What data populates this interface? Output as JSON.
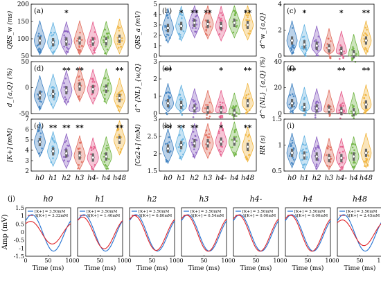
{
  "colors": [
    "#3b7fc0",
    "#5fb0e0",
    "#8a5fc1",
    "#e06a5a",
    "#e55a8a",
    "#6db33f",
    "#f0b43c"
  ],
  "groups": [
    "h0",
    "h1",
    "h2",
    "h3",
    "h4-",
    "h4",
    "h48"
  ],
  "chart_data": [
    {
      "type": "violin",
      "panel": "(a)",
      "ylabel": "QRS_w (ms)",
      "ylim": [
        50,
        200
      ],
      "yticks": [
        50,
        100,
        150,
        200
      ],
      "medians": [
        95,
        90,
        92,
        95,
        92,
        93,
        100
      ],
      "stars": [
        "",
        "",
        "*",
        "",
        "",
        "",
        ""
      ]
    },
    {
      "type": "violin",
      "panel": "(b)",
      "ylabel": "QRS_a (mV)",
      "ylim": [
        0,
        5
      ],
      "yticks": [
        0,
        1,
        2,
        3,
        4,
        5
      ],
      "medians": [
        2.7,
        2.9,
        3.2,
        3.1,
        2.9,
        3.2,
        3.0
      ],
      "stars": [
        "",
        "*",
        "**",
        "**",
        "",
        "",
        "**"
      ]
    },
    {
      "type": "violin",
      "panel": "(c)",
      "ylabel": "d^w_{a,Q}",
      "ylim": [
        0,
        4
      ],
      "yticks": [
        0,
        2,
        4
      ],
      "medians": [
        1.2,
        0.9,
        0.8,
        0.6,
        0.4,
        0.15,
        1.2
      ],
      "stars": [
        "",
        "*",
        "",
        "",
        "*",
        "",
        "**"
      ]
    },
    {
      "type": "violin",
      "panel": "(d)",
      "ylabel": "d_{a,Q} (%)",
      "ylim": [
        -50,
        50
      ],
      "yticks": [
        -50,
        0,
        50
      ],
      "medians": [
        -15,
        -12,
        -5,
        2,
        -3,
        -2,
        -20
      ],
      "stars": [
        "",
        "",
        "**",
        "**",
        "",
        "",
        "**"
      ]
    },
    {
      "type": "violin",
      "panel": "(e)",
      "ylabel": "d^{NL}_{w,Q}",
      "ylim": [
        0,
        3
      ],
      "yticks": [
        0,
        1,
        2,
        3
      ],
      "medians": [
        0.6,
        0.5,
        0.3,
        0.2,
        0.2,
        0.05,
        0.6
      ],
      "stars": [
        "**",
        "",
        "",
        "",
        "*",
        "",
        "**"
      ]
    },
    {
      "type": "violin",
      "panel": "(f)",
      "ylabel": "d^{NL}_{a,Q} (%)",
      "ylim": [
        0,
        40
      ],
      "yticks": [
        0,
        20,
        40
      ],
      "medians": [
        8,
        5,
        4,
        3,
        2,
        1,
        7
      ],
      "stars": [
        "**",
        "",
        "",
        "",
        "**",
        "",
        "**"
      ]
    },
    {
      "type": "violin",
      "panel": "(g)",
      "ylabel": "[K+] (mM)",
      "ylim": [
        2,
        7
      ],
      "yticks": [
        2,
        3,
        4,
        5,
        6,
        7
      ],
      "medians": [
        4.8,
        3.9,
        3.7,
        3.5,
        3.3,
        3.4,
        5.0
      ],
      "stars": [
        "",
        "**",
        "**",
        "**",
        "",
        "",
        "**"
      ]
    },
    {
      "type": "violin",
      "panel": "(h)",
      "ylabel": "[Ca2+] (mM)",
      "ylim": [
        1.5,
        3
      ],
      "yticks": [
        1.5,
        2,
        2.5,
        3
      ],
      "medians": [
        2.15,
        2.25,
        2.3,
        2.3,
        2.35,
        2.35,
        2.2
      ],
      "stars": [
        "**",
        "**",
        "**",
        "",
        "*",
        "",
        "**"
      ]
    },
    {
      "type": "violin",
      "panel": "(i)",
      "ylabel": "RR (s)",
      "ylim": [
        0.5,
        1.5
      ],
      "yticks": [
        0.5,
        1,
        1.5
      ],
      "medians": [
        0.85,
        0.8,
        0.78,
        0.75,
        0.75,
        0.78,
        0.85
      ],
      "stars": [
        "",
        "",
        "",
        "",
        "",
        "",
        ""
      ]
    }
  ],
  "xgroup_labels": [
    "h0",
    "h1",
    "h2",
    "h3",
    "h4-",
    "h4",
    "h48"
  ],
  "waves": {
    "panel": "(j)",
    "ylabel": "Amp (mV)",
    "xlabel": "Time (ms)",
    "ylim": [
      -1.5,
      1.5
    ],
    "yticks": [
      "1.5",
      "1",
      "0.5",
      "0",
      "-0.5",
      "-1",
      "-1.5"
    ],
    "xticks": [
      "0",
      "50",
      "100"
    ],
    "titles": [
      "h0",
      "h1",
      "h2",
      "h3",
      "h4-",
      "h4",
      "h48"
    ],
    "legend1": [
      "[K+] = 3.50mM",
      "[K+] = 3.50mM",
      "[K+] = 3.50mM",
      "[K+] = 3.50mM",
      "[K+] = 3.50mM",
      "[K+] = 3.50mM",
      "[K+] = 3.50mM"
    ],
    "legend2": [
      "Δ[K+] = 3.32mM",
      "Δ[K+] = 1.40mM",
      "Δ[K+] = 0.80mM",
      "Δ[K+] = 0.54mM",
      "Δ[K+] = 0.00mM",
      "Δ[K+] = 0.00mM",
      "Δ[K+] = 2.45mM"
    ],
    "blue_amp": [
      1.2,
      1.2,
      1.2,
      1.2,
      1.2,
      1.2,
      1.2
    ],
    "red_amp": [
      0.75,
      1.05,
      1.15,
      1.2,
      1.2,
      1.2,
      0.85
    ]
  }
}
